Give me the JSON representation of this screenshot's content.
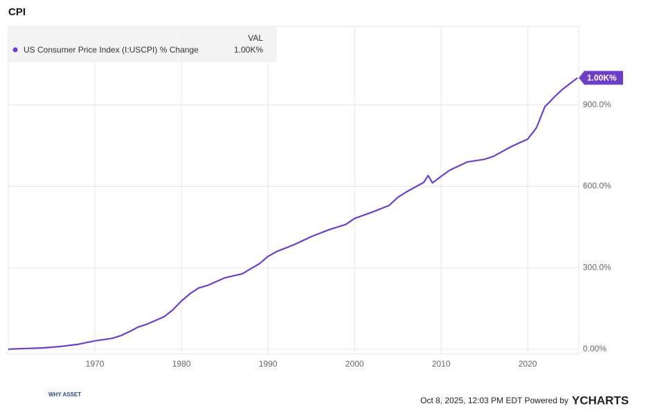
{
  "chart_data": {
    "type": "line",
    "title": "CPI",
    "legend_header": "VAL",
    "x": [
      1960,
      1962,
      1964,
      1966,
      1968,
      1970,
      1972,
      1973,
      1974,
      1975,
      1976,
      1978,
      1979,
      1980,
      1981,
      1982,
      1983,
      1985,
      1987,
      1989,
      1990,
      1991,
      1993,
      1995,
      1997,
      1999,
      2000,
      2002,
      2004,
      2005,
      2006,
      2008,
      2008.5,
      2009,
      2010,
      2011,
      2013,
      2015,
      2016,
      2018,
      2019,
      2020,
      2021,
      2021.5,
      2022,
      2022.5,
      2023,
      2024,
      2025.75
    ],
    "series": [
      {
        "name": "US Consumer Price Index (I:USCPI) % Change",
        "color": "#6c3fc4",
        "values": [
          0,
          3,
          5,
          10,
          18,
          31,
          40,
          50,
          65,
          82,
          92,
          120,
          145,
          178,
          205,
          226,
          235,
          263,
          278,
          315,
          342,
          360,
          385,
          415,
          440,
          460,
          482,
          505,
          530,
          560,
          580,
          615,
          640,
          613,
          637,
          660,
          690,
          700,
          710,
          745,
          760,
          774,
          815,
          855,
          895,
          910,
          927,
          957,
          1000
        ],
        "legend_value": "1.00K%"
      }
    ],
    "xlim": [
      1960,
      2025.9
    ],
    "xticks": [
      1970,
      1980,
      1990,
      2000,
      2010,
      2020
    ],
    "ylim": [
      -18,
      1190
    ],
    "yticks": [
      {
        "value": 0,
        "label": "0.00%"
      },
      {
        "value": 300,
        "label": "300.0%"
      },
      {
        "value": 600,
        "label": "600.0%"
      },
      {
        "value": 900,
        "label": "900.0%"
      }
    ],
    "grid": true,
    "logo": "WHY ASSET",
    "footer": "Oct 8, 2025, 12:03 PM EDT Powered by",
    "brand": "YCHARTS"
  }
}
